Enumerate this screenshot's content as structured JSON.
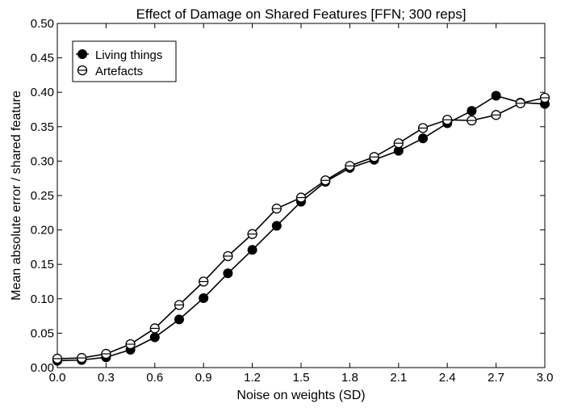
{
  "chart_data": {
    "type": "line",
    "title": "Effect of Damage on Shared Features [FFN; 300 reps]",
    "xlabel": "Noise on weights (SD)",
    "ylabel": "Mean absolute error / shared feature",
    "xlim": [
      0.0,
      3.0
    ],
    "ylim": [
      0.0,
      0.5
    ],
    "x_ticks": [
      "0.0",
      "0.3",
      "0.6",
      "0.9",
      "1.2",
      "1.5",
      "1.8",
      "2.1",
      "2.4",
      "2.7",
      "3.0"
    ],
    "y_ticks": [
      "0.00",
      "0.05",
      "0.10",
      "0.15",
      "0.20",
      "0.25",
      "0.30",
      "0.35",
      "0.40",
      "0.45",
      "0.50"
    ],
    "x": [
      0.0,
      0.15,
      0.3,
      0.45,
      0.6,
      0.75,
      0.9,
      1.05,
      1.2,
      1.35,
      1.5,
      1.65,
      1.8,
      1.95,
      2.1,
      2.25,
      2.4,
      2.55,
      2.7,
      2.85,
      3.0
    ],
    "series": [
      {
        "name": "Living things",
        "marker": "filled-circle",
        "values": [
          0.01,
          0.011,
          0.015,
          0.026,
          0.044,
          0.07,
          0.101,
          0.137,
          0.171,
          0.206,
          0.241,
          0.27,
          0.29,
          0.302,
          0.315,
          0.333,
          0.355,
          0.373,
          0.395,
          0.385,
          0.383
        ]
      },
      {
        "name": "Artefacts",
        "marker": "open-circle",
        "values": [
          0.013,
          0.014,
          0.02,
          0.034,
          0.057,
          0.091,
          0.125,
          0.162,
          0.194,
          0.231,
          0.247,
          0.272,
          0.293,
          0.306,
          0.326,
          0.348,
          0.36,
          0.359,
          0.367,
          0.384,
          0.392
        ]
      }
    ],
    "legend_position": "top-left",
    "grid": false
  }
}
